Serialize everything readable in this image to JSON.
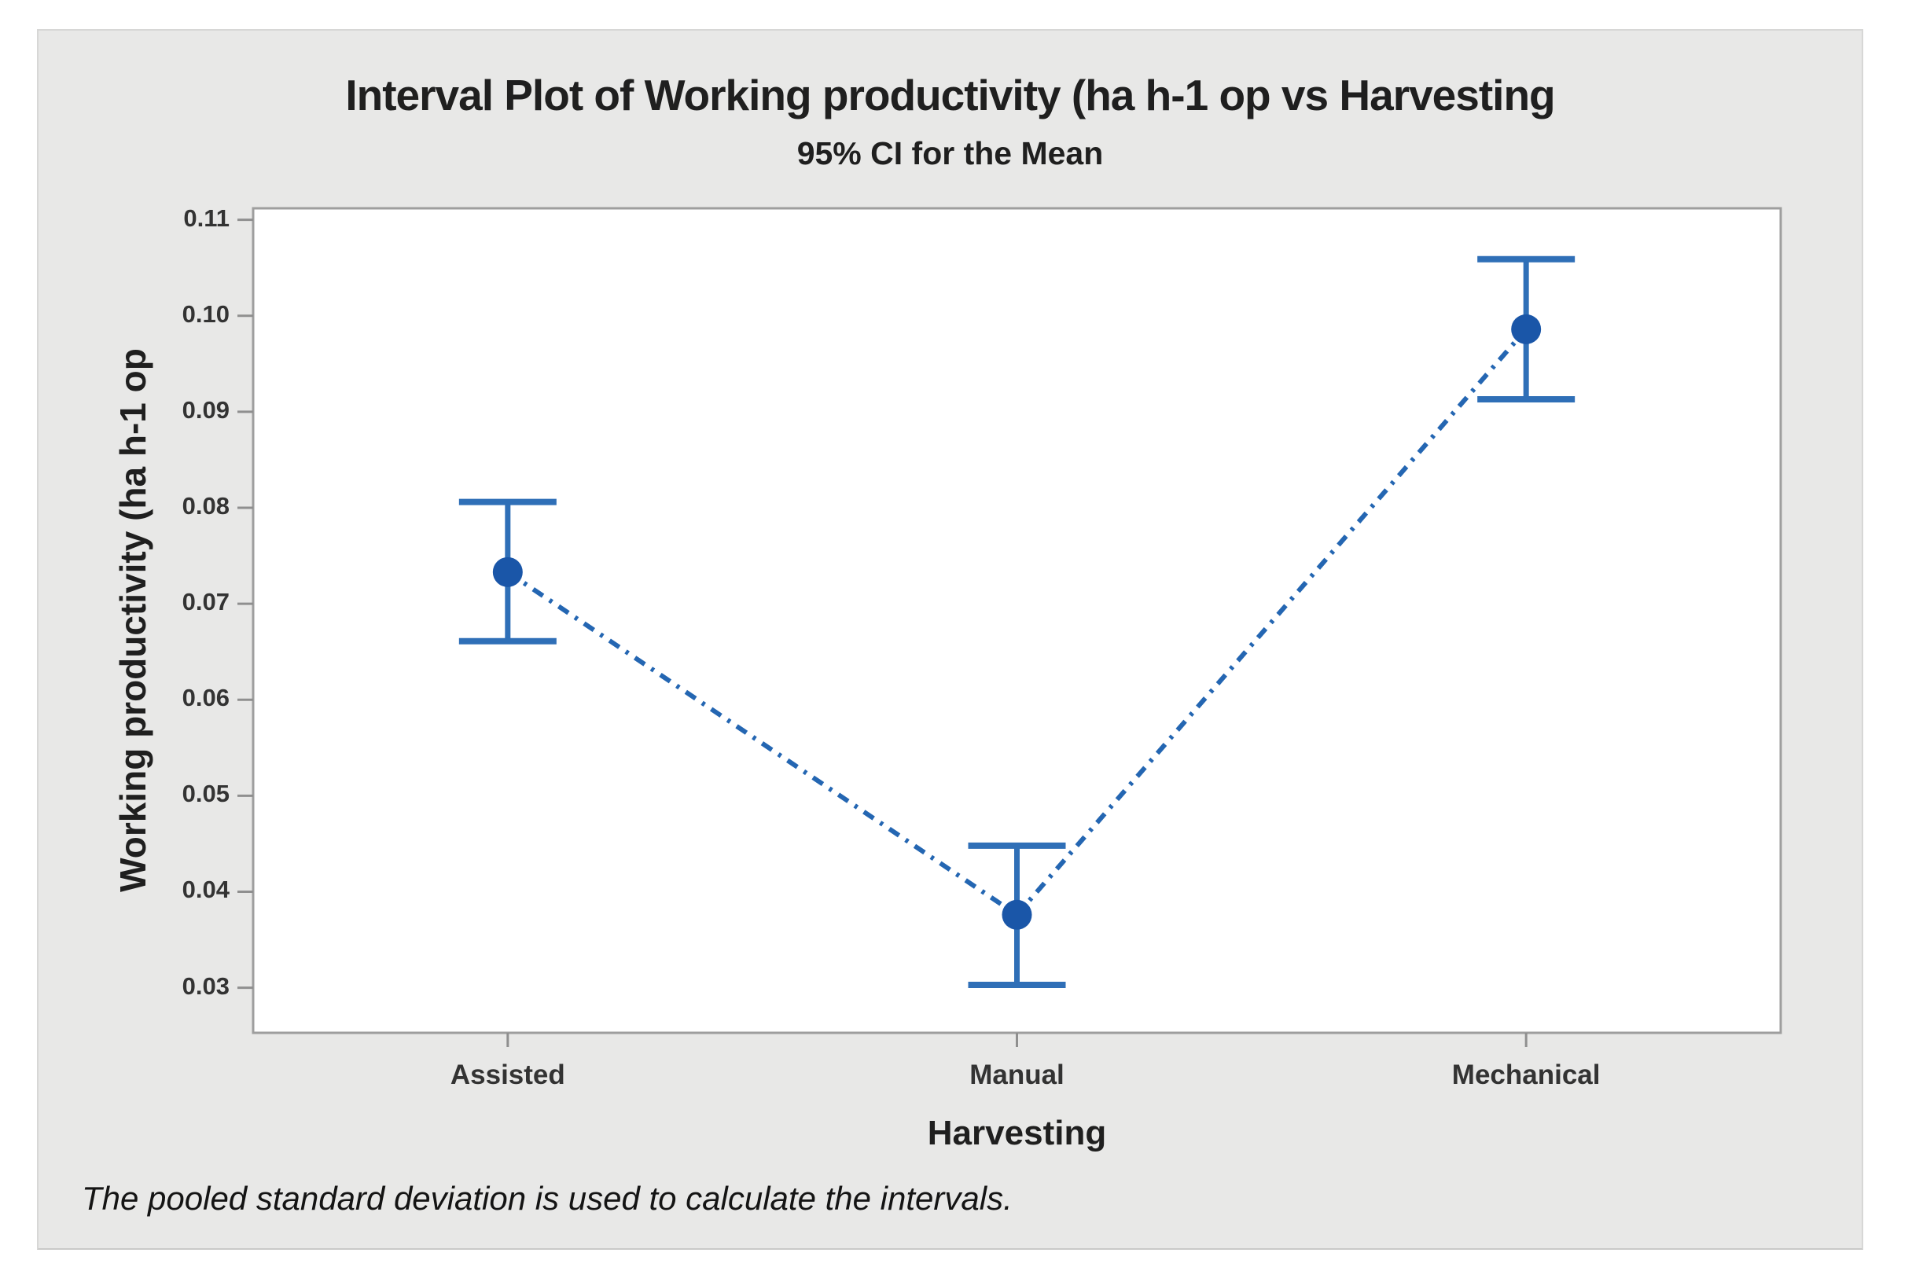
{
  "chart_data": {
    "type": "scatter",
    "variant": "interval-plot-mean-ci",
    "title": "Interval Plot of Working productivity (ha h-1 op vs Harvesting",
    "subtitle": "95% CI for the Mean",
    "xlabel": "Harvesting",
    "ylabel": "Working productivity (ha h-1 op",
    "categories": [
      "Assisted",
      "Manual",
      "Mechanical"
    ],
    "series": [
      {
        "name": "Mean",
        "values": [
          0.0733,
          0.0376,
          0.0986
        ]
      }
    ],
    "ci_low": [
      0.0661,
      0.0303,
      0.0913
    ],
    "ci_high": [
      0.0806,
      0.0448,
      0.1059
    ],
    "ci_level": "95%",
    "yticks": [
      "0.03",
      "0.04",
      "0.05",
      "0.06",
      "0.07",
      "0.08",
      "0.09",
      "0.10",
      "0.11"
    ],
    "ylim": [
      0.0253,
      0.1112
    ],
    "grid": false,
    "legend": "none",
    "connector_style": "dash-dot",
    "footnote": "The pooled standard deviation is used to calculate the intervals.",
    "colors": {
      "marker": "#1a56a8",
      "interval": "#2f6fb7",
      "connector": "#2466b2",
      "panel_bg": "#e8e8e7",
      "plot_bg": "#ffffff",
      "plot_border": "#9e9e9e",
      "tick": "#8f8f8f",
      "title_text": "#1f1f1f",
      "tick_label_text": "#333333"
    }
  }
}
